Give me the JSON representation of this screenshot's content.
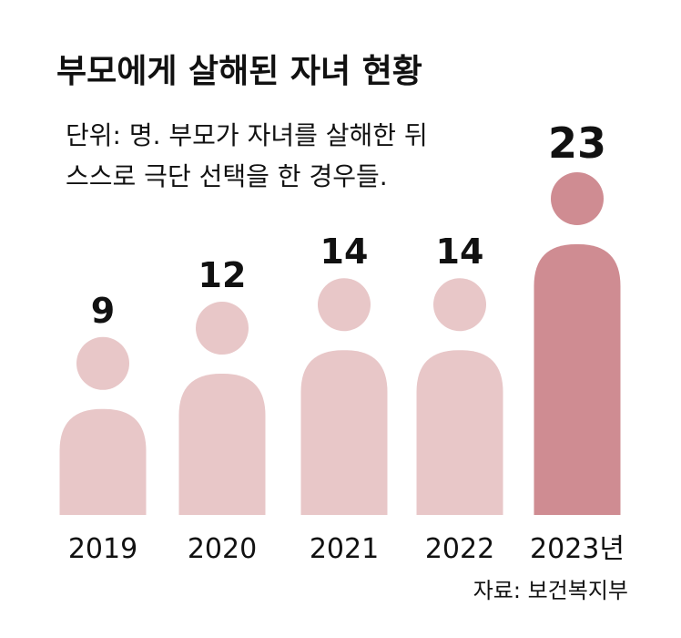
{
  "chart_data": {
    "type": "pictogram",
    "title": "부모에게 살해된 자녀 현황",
    "subtitle": [
      "단위: 명. 부모가 자녀를 살해한 뒤",
      "스스로 극단 선택을 한 경우들."
    ],
    "categories": [
      "2019",
      "2020",
      "2021",
      "2022",
      "2023년"
    ],
    "values": [
      9,
      12,
      14,
      14,
      23
    ],
    "colors": [
      "#e8c7c8",
      "#e8c7c8",
      "#e8c7c8",
      "#e8c7c8",
      "#cf8c92"
    ],
    "source": "자료: 보건복지부"
  }
}
